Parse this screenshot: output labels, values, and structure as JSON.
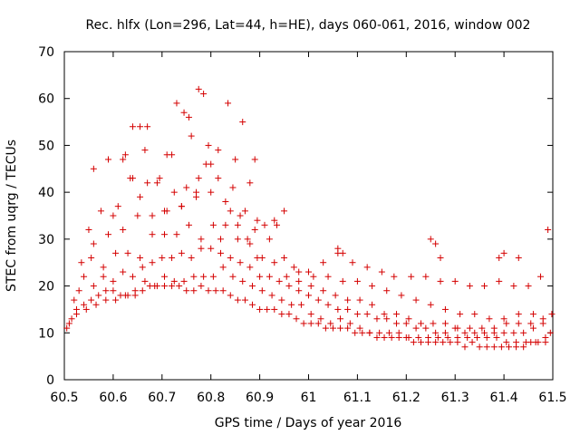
{
  "chart_data": {
    "type": "scatter",
    "title": "Rec. hlfx (Lon=296, Lat=44, h=HE), days 060-061, 2016, window 002",
    "xlabel": "GPS time / Days of year 2016",
    "ylabel": "STEC from uqrg / TECUs",
    "xlim": [
      60.5,
      61.5
    ],
    "ylim": [
      0,
      70
    ],
    "xticks": [
      60.5,
      60.6,
      60.7,
      60.8,
      60.9,
      61,
      61.1,
      61.2,
      61.3,
      61.4,
      61.5
    ],
    "xtick_labels": [
      "60.5",
      "60.6",
      "60.7",
      "60.8",
      "60.9",
      "61",
      "61.1",
      "61.2",
      "61.3",
      "61.4",
      "61.5"
    ],
    "yticks": [
      0,
      10,
      20,
      30,
      40,
      50,
      60,
      70
    ],
    "ytick_labels": [
      "0",
      "10",
      "20",
      "30",
      "40",
      "50",
      "60",
      "70"
    ],
    "grid": false,
    "legend": "none",
    "marker": "plus",
    "color": "#d40000",
    "series": [
      {
        "x": [
          60.505,
          60.515,
          60.525,
          60.54,
          60.555,
          60.57,
          60.585,
          60.6,
          60.615,
          60.63,
          60.645,
          60.66,
          60.675,
          60.69,
          60.705,
          60.72,
          60.735,
          60.75,
          60.765,
          60.78,
          60.795,
          60.81,
          60.825,
          60.84,
          60.855,
          60.87,
          60.885,
          60.9,
          60.915,
          60.93,
          60.945,
          60.96,
          60.975,
          60.99,
          61.005,
          61.02,
          61.035,
          61.05,
          61.065,
          61.08,
          61.095,
          61.11,
          61.125,
          61.14,
          61.155,
          61.17,
          61.185,
          61.2,
          61.215,
          61.23,
          61.245,
          61.26,
          61.275,
          61.29,
          61.305,
          61.32,
          61.335,
          61.35,
          61.365,
          61.38,
          61.395,
          61.41,
          61.425,
          61.44,
          61.455,
          61.47,
          61.485,
          61.495,
          60.51,
          60.525,
          60.545,
          60.565,
          60.585,
          60.605,
          60.625,
          60.645,
          60.665,
          60.685,
          60.705,
          60.725,
          60.745,
          60.765,
          60.785,
          60.805,
          60.825,
          60.845,
          60.865,
          60.885,
          60.905,
          60.925,
          60.945,
          60.965,
          60.985,
          61.005,
          61.025,
          61.045,
          61.065,
          61.085,
          61.105,
          61.125,
          61.145,
          61.165,
          61.185,
          61.205,
          61.225,
          61.245,
          61.265,
          61.285,
          61.305,
          61.325,
          61.345,
          61.365,
          61.385,
          61.405,
          61.425,
          61.445,
          61.465,
          61.485,
          60.52,
          60.54,
          60.56,
          60.58,
          60.6,
          60.62,
          60.64,
          60.66,
          60.68,
          60.7,
          60.72,
          60.74,
          60.76,
          60.78,
          60.8,
          60.82,
          60.84,
          60.86,
          60.88,
          60.9,
          60.92,
          60.94,
          60.96,
          60.98,
          61.0,
          61.02,
          61.04,
          61.06,
          61.08,
          61.1,
          61.12,
          61.14,
          61.16,
          61.18,
          61.2,
          61.22,
          61.24,
          61.26,
          61.28,
          61.3,
          61.32,
          61.34,
          61.36,
          61.38,
          61.4,
          61.42,
          61.44,
          61.46,
          61.48,
          60.53,
          60.555,
          60.58,
          60.605,
          60.63,
          60.655,
          60.68,
          60.705,
          60.73,
          60.755,
          60.78,
          60.805,
          60.83,
          60.855,
          60.88,
          60.905,
          60.93,
          60.955,
          60.98,
          61.005,
          61.03,
          61.055,
          61.08,
          61.105,
          61.13,
          61.155,
          61.18,
          61.205,
          61.23,
          61.255,
          61.28,
          61.305,
          61.33,
          61.355,
          61.38,
          61.405,
          61.43,
          61.455,
          61.48,
          61.498,
          60.535,
          60.56,
          60.59,
          60.62,
          60.65,
          60.68,
          60.71,
          60.74,
          60.77,
          60.8,
          60.83,
          60.86,
          60.89,
          60.92,
          60.95,
          60.98,
          61.01,
          61.04,
          61.07,
          61.1,
          61.13,
          61.16,
          61.19,
          61.22,
          61.25,
          61.28,
          61.31,
          61.34,
          61.37,
          61.4,
          61.43,
          61.46,
          60.55,
          60.575,
          60.61,
          60.635,
          60.67,
          60.695,
          60.725,
          60.75,
          60.775,
          60.79,
          60.815,
          60.845,
          60.87,
          60.895,
          60.935,
          60.97,
          61.0,
          61.03,
          61.06,
          61.09,
          61.12,
          61.15,
          61.175,
          61.21,
          61.24,
          61.27,
          61.3,
          61.33,
          61.36,
          61.39,
          61.42,
          61.45,
          61.475,
          60.56,
          60.59,
          60.625,
          60.64,
          60.655,
          60.67,
          60.69,
          60.71,
          60.73,
          60.745,
          60.76,
          60.775,
          60.785,
          60.8,
          60.815,
          60.835,
          60.85,
          60.865,
          60.88,
          60.89,
          60.6,
          60.62,
          60.64,
          60.655,
          60.665,
          60.705,
          60.72,
          60.74,
          60.755,
          60.77,
          60.795,
          60.82,
          60.84,
          60.855,
          60.875,
          60.895,
          60.91,
          60.93,
          60.95,
          61.06,
          61.07,
          61.25,
          61.26,
          61.27,
          61.39,
          61.4,
          61.43,
          61.49
        ],
        "y": [
          11,
          13,
          15,
          16,
          17,
          18,
          19,
          19,
          18,
          18,
          19,
          19,
          20,
          20,
          20,
          20,
          20,
          19,
          19,
          20,
          19,
          19,
          19,
          18,
          17,
          17,
          16,
          15,
          15,
          15,
          14,
          14,
          13,
          12,
          12,
          12,
          11,
          11,
          11,
          11,
          10,
          10,
          10,
          9,
          9,
          9,
          9,
          9,
          8,
          8,
          8,
          8,
          8,
          8,
          8,
          7,
          8,
          7,
          7,
          7,
          7,
          7,
          7,
          7,
          8,
          8,
          9,
          10,
          12,
          14,
          15,
          16,
          17,
          17,
          18,
          18,
          21,
          20,
          22,
          21,
          21,
          22,
          22,
          22,
          24,
          22,
          21,
          20,
          19,
          18,
          17,
          16,
          16,
          14,
          13,
          12,
          13,
          12,
          11,
          10,
          10,
          10,
          10,
          9,
          9,
          9,
          9,
          9,
          9,
          9,
          9,
          9,
          9,
          8,
          8,
          8,
          8,
          8,
          17,
          22,
          20,
          22,
          21,
          23,
          22,
          24,
          25,
          26,
          26,
          27,
          26,
          28,
          28,
          27,
          26,
          25,
          24,
          22,
          22,
          21,
          20,
          19,
          18,
          17,
          16,
          15,
          15,
          14,
          14,
          13,
          13,
          12,
          12,
          11,
          11,
          10,
          10,
          11,
          10,
          10,
          10,
          10,
          10,
          10,
          10,
          11,
          12,
          19,
          26,
          24,
          27,
          27,
          26,
          31,
          31,
          31,
          33,
          30,
          33,
          33,
          30,
          29,
          26,
          25,
          22,
          21,
          20,
          19,
          18,
          17,
          17,
          16,
          14,
          14,
          13,
          12,
          12,
          12,
          11,
          11,
          11,
          11,
          12,
          12,
          12,
          13,
          14,
          25,
          29,
          31,
          32,
          35,
          35,
          36,
          37,
          39,
          40,
          38,
          35,
          32,
          30,
          26,
          23,
          22,
          22,
          21,
          21,
          20,
          19,
          18,
          17,
          16,
          15,
          14,
          14,
          13,
          13,
          14,
          14,
          32,
          36,
          37,
          43,
          42,
          43,
          40,
          41,
          43,
          46,
          43,
          41,
          36,
          34,
          33,
          24,
          23,
          25,
          27,
          25,
          24,
          23,
          22,
          22,
          22,
          21,
          21,
          20,
          20,
          21,
          20,
          20,
          22,
          45,
          47,
          48,
          54,
          54,
          54,
          42,
          48,
          59,
          57,
          52,
          62,
          61,
          46,
          49,
          59,
          47,
          55,
          42,
          47,
          35,
          47,
          43,
          39,
          49,
          36,
          48,
          37,
          56,
          40,
          50,
          30,
          36,
          33,
          30,
          26,
          33,
          34,
          36,
          28,
          27,
          30,
          29,
          26,
          26,
          27,
          26,
          32
        ]
      }
    ]
  }
}
